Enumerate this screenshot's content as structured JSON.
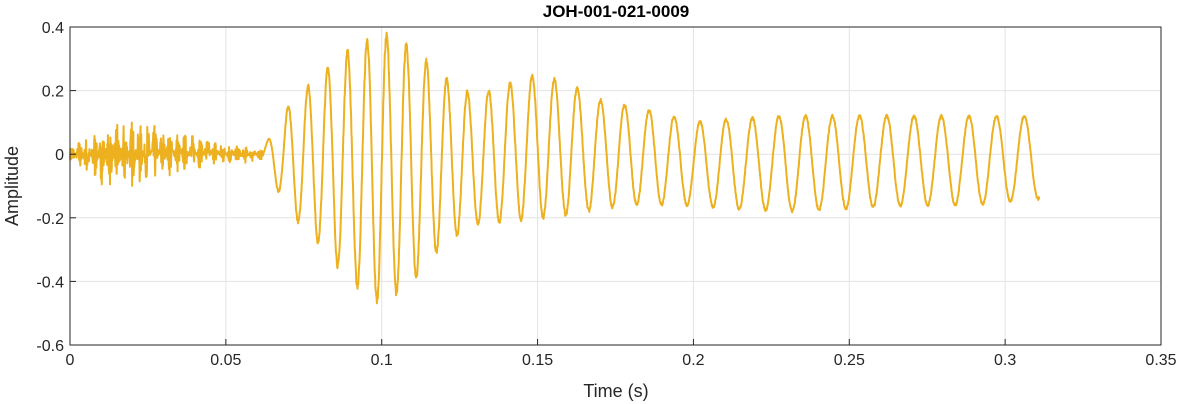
{
  "chart_data": {
    "type": "line",
    "title": "JOH-001-021-0009",
    "xlabel": "Time (s)",
    "ylabel": "Amplitude",
    "xlim": [
      0,
      0.35
    ],
    "ylim": [
      -0.6,
      0.4
    ],
    "xticks": [
      0,
      0.05,
      0.1,
      0.15,
      0.2,
      0.25,
      0.3,
      0.35
    ],
    "xtick_labels": [
      "0",
      "0.05",
      "0.1",
      "0.15",
      "0.2",
      "0.25",
      "0.3",
      "0.35"
    ],
    "yticks": [
      -0.6,
      -0.4,
      -0.2,
      0,
      0.2,
      0.4
    ],
    "ytick_labels": [
      "-0.6",
      "-0.4",
      "-0.2",
      "0",
      "0.2",
      "0.4"
    ],
    "grid": true,
    "series": [
      {
        "color": "#EDB120",
        "duration": 0.311,
        "envelope": {
          "t": [
            0,
            0.005,
            0.015,
            0.025,
            0.035,
            0.045,
            0.055,
            0.062,
            0.07,
            0.08,
            0.09,
            0.1,
            0.11,
            0.12,
            0.13,
            0.14,
            0.15,
            0.16,
            0.17,
            0.18,
            0.19,
            0.2,
            0.21,
            0.23,
            0.25,
            0.27,
            0.29,
            0.311
          ],
          "upper": [
            0.03,
            0.06,
            0.12,
            0.1,
            0.07,
            0.05,
            0.03,
            0.02,
            0.15,
            0.25,
            0.33,
            0.38,
            0.33,
            0.24,
            0.18,
            0.22,
            0.25,
            0.22,
            0.17,
            0.15,
            0.13,
            0.1,
            0.11,
            0.12,
            0.12,
            0.12,
            0.12,
            0.12
          ],
          "lower": [
            -0.03,
            -0.07,
            -0.12,
            -0.09,
            -0.06,
            -0.04,
            -0.03,
            -0.02,
            -0.18,
            -0.28,
            -0.4,
            -0.47,
            -0.4,
            -0.28,
            -0.22,
            -0.21,
            -0.2,
            -0.19,
            -0.17,
            -0.16,
            -0.16,
            -0.16,
            -0.17,
            -0.18,
            -0.17,
            -0.16,
            -0.16,
            -0.14
          ]
        },
        "frequency": {
          "t": [
            0.062,
            0.1,
            0.15,
            0.2,
            0.25,
            0.311
          ],
          "hz": [
            155,
            160,
            140,
            120,
            115,
            112
          ]
        },
        "noise_until": 0.062
      }
    ]
  }
}
